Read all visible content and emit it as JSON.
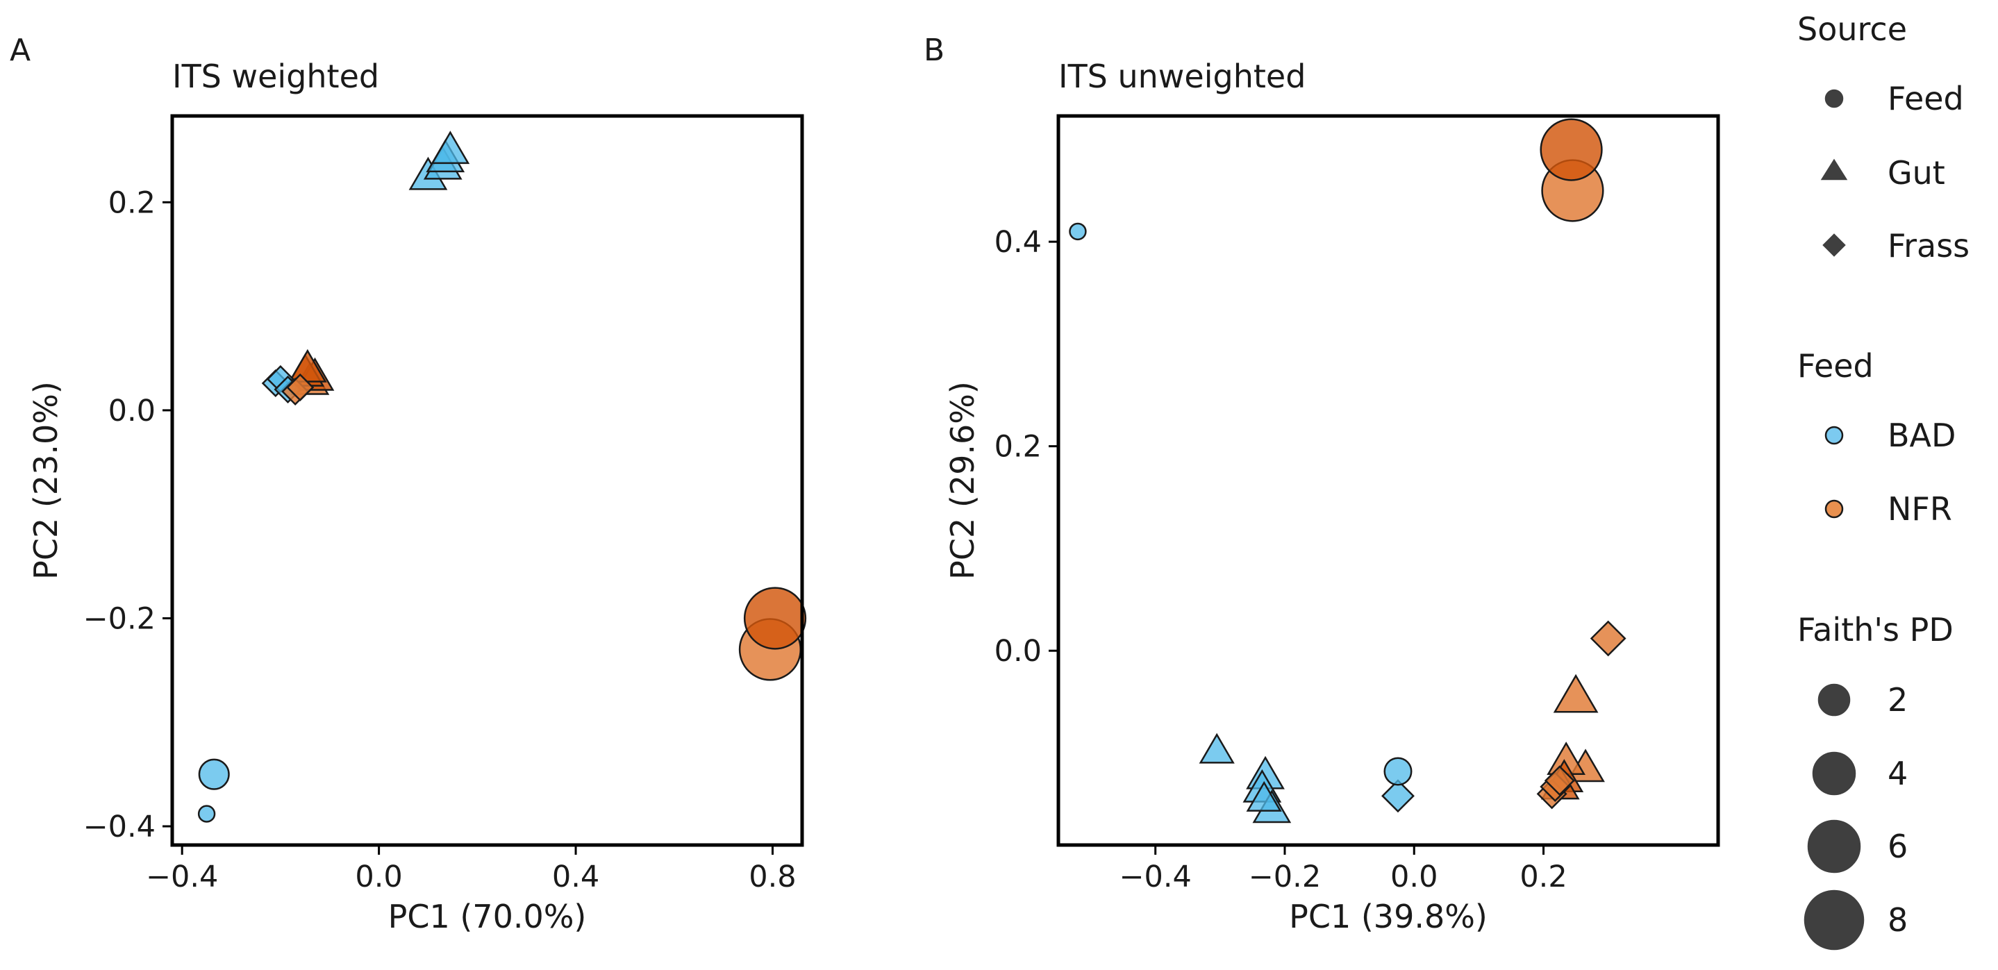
{
  "figure": {
    "panels": [
      {
        "letter": "A",
        "title": "ITS weighted"
      },
      {
        "letter": "B",
        "title": "ITS unweighted"
      }
    ]
  },
  "colors": {
    "BAD": "#4fb9ea",
    "NFR_dark": "#d2570c",
    "NFR_light": "#e07a35",
    "legend_BAD": "#7ccaf0",
    "legend_NFR": "#e8904f",
    "legend_shape": "#3f3f3f",
    "edge": "#1a1a1a"
  },
  "legend": {
    "source": {
      "title": "Source",
      "items": [
        {
          "label": "Feed",
          "shape": "circle"
        },
        {
          "label": "Gut",
          "shape": "triangle"
        },
        {
          "label": "Frass",
          "shape": "diamond"
        }
      ]
    },
    "feed": {
      "title": "Feed",
      "items": [
        {
          "label": "BAD",
          "group": "BAD"
        },
        {
          "label": "NFR",
          "group": "NFR"
        }
      ]
    },
    "faith": {
      "title": "Faith's PD",
      "items": [
        {
          "label": "2",
          "size": 2
        },
        {
          "label": "4",
          "size": 4
        },
        {
          "label": "6",
          "size": 6
        },
        {
          "label": "8",
          "size": 8
        }
      ]
    }
  },
  "chart_data": [
    {
      "type": "scatter",
      "title": "ITS weighted",
      "panel": "A",
      "xlabel": "PC1 (70.0%)",
      "ylabel": "PC2 (23.0%)",
      "xlim": [
        -0.42,
        0.86
      ],
      "ylim": [
        -0.418,
        0.283
      ],
      "xticks": [
        -0.4,
        0.0,
        0.4,
        0.8
      ],
      "xtick_labels": [
        "−0.4",
        "0.0",
        "0.4",
        "0.8"
      ],
      "yticks": [
        -0.4,
        -0.2,
        0.0,
        0.2
      ],
      "ytick_labels": [
        "−0.4",
        "−0.2",
        "0.0",
        "0.2"
      ],
      "points": [
        {
          "x": -0.35,
          "y": -0.388,
          "source": "Feed",
          "feed": "BAD",
          "pd": 0.6
        },
        {
          "x": -0.335,
          "y": -0.35,
          "source": "Feed",
          "feed": "BAD",
          "pd": 3.0
        },
        {
          "x": 0.795,
          "y": -0.23,
          "source": "Feed",
          "feed": "NFR",
          "pd": 8.5
        },
        {
          "x": 0.805,
          "y": -0.2,
          "source": "Feed",
          "feed": "NFR",
          "pd": 8.5,
          "shade": "dark"
        },
        {
          "x": -0.21,
          "y": 0.026,
          "source": "Frass",
          "feed": "BAD",
          "pd": 2.5
        },
        {
          "x": -0.2,
          "y": 0.03,
          "source": "Frass",
          "feed": "BAD",
          "pd": 2.5
        },
        {
          "x": -0.185,
          "y": 0.02,
          "source": "Frass",
          "feed": "BAD",
          "pd": 2.5
        },
        {
          "x": -0.17,
          "y": 0.018,
          "source": "Frass",
          "feed": "NFR",
          "pd": 2.5
        },
        {
          "x": -0.16,
          "y": 0.022,
          "source": "Frass",
          "feed": "NFR",
          "pd": 2.5
        },
        {
          "x": -0.14,
          "y": 0.028,
          "source": "Gut",
          "feed": "NFR",
          "pd": 3.5
        },
        {
          "x": -0.13,
          "y": 0.032,
          "source": "Gut",
          "feed": "NFR",
          "pd": 3.5,
          "shade": "dark"
        },
        {
          "x": -0.15,
          "y": 0.036,
          "source": "Gut",
          "feed": "NFR",
          "pd": 3.5,
          "shade": "dark"
        },
        {
          "x": -0.145,
          "y": 0.04,
          "source": "Gut",
          "feed": "NFR",
          "pd": 3.5,
          "shade": "dark"
        },
        {
          "x": 0.1,
          "y": 0.225,
          "source": "Gut",
          "feed": "BAD",
          "pd": 3.5
        },
        {
          "x": 0.13,
          "y": 0.235,
          "source": "Gut",
          "feed": "BAD",
          "pd": 3.5
        },
        {
          "x": 0.135,
          "y": 0.242,
          "source": "Gut",
          "feed": "BAD",
          "pd": 3.5
        },
        {
          "x": 0.145,
          "y": 0.25,
          "source": "Gut",
          "feed": "BAD",
          "pd": 3.5
        }
      ]
    },
    {
      "type": "scatter",
      "title": "ITS unweighted",
      "panel": "B",
      "xlabel": "PC1 (39.8%)",
      "ylabel": "PC2 (29.6%)",
      "xlim": [
        -0.55,
        0.47
      ],
      "ylim": [
        -0.19,
        0.523
      ],
      "xticks": [
        -0.4,
        -0.2,
        0.0,
        0.2
      ],
      "xtick_labels": [
        "−0.4",
        "−0.2",
        "0.0",
        "0.2"
      ],
      "yticks": [
        0.0,
        0.2,
        0.4
      ],
      "ytick_labels": [
        "0.0",
        "0.2",
        "0.4"
      ],
      "points": [
        {
          "x": -0.52,
          "y": 0.41,
          "source": "Feed",
          "feed": "BAD",
          "pd": 0.6
        },
        {
          "x": -0.025,
          "y": -0.118,
          "source": "Feed",
          "feed": "BAD",
          "pd": 2.5
        },
        {
          "x": 0.245,
          "y": 0.45,
          "source": "Feed",
          "feed": "NFR",
          "pd": 8.5
        },
        {
          "x": 0.243,
          "y": 0.49,
          "source": "Feed",
          "feed": "NFR",
          "pd": 8.5,
          "shade": "dark"
        },
        {
          "x": -0.025,
          "y": -0.142,
          "source": "Frass",
          "feed": "BAD",
          "pd": 3.5
        },
        {
          "x": 0.3,
          "y": 0.012,
          "source": "Frass",
          "feed": "NFR",
          "pd": 4.0
        },
        {
          "x": 0.213,
          "y": -0.14,
          "source": "Frass",
          "feed": "NFR",
          "pd": 3.0
        },
        {
          "x": 0.218,
          "y": -0.133,
          "source": "Frass",
          "feed": "NFR",
          "pd": 3.0
        },
        {
          "x": 0.225,
          "y": -0.127,
          "source": "Frass",
          "feed": "NFR",
          "pd": 3.0
        },
        {
          "x": -0.305,
          "y": -0.098,
          "source": "Gut",
          "feed": "BAD",
          "pd": 3.0
        },
        {
          "x": -0.23,
          "y": -0.122,
          "source": "Gut",
          "feed": "BAD",
          "pd": 3.5
        },
        {
          "x": -0.235,
          "y": -0.135,
          "source": "Gut",
          "feed": "BAD",
          "pd": 3.5
        },
        {
          "x": -0.232,
          "y": -0.145,
          "source": "Gut",
          "feed": "BAD",
          "pd": 3.0
        },
        {
          "x": -0.22,
          "y": -0.155,
          "source": "Gut",
          "feed": "BAD",
          "pd": 3.5
        },
        {
          "x": 0.25,
          "y": -0.045,
          "source": "Gut",
          "feed": "NFR",
          "pd": 4.5
        },
        {
          "x": 0.265,
          "y": -0.115,
          "source": "Gut",
          "feed": "NFR",
          "pd": 3.5
        },
        {
          "x": 0.235,
          "y": -0.108,
          "source": "Gut",
          "feed": "NFR",
          "pd": 3.5
        },
        {
          "x": 0.232,
          "y": -0.125,
          "source": "Gut",
          "feed": "NFR",
          "pd": 3.5,
          "shade": "dark"
        },
        {
          "x": 0.226,
          "y": -0.132,
          "source": "Gut",
          "feed": "NFR",
          "pd": 3.5,
          "shade": "dark"
        }
      ]
    }
  ]
}
